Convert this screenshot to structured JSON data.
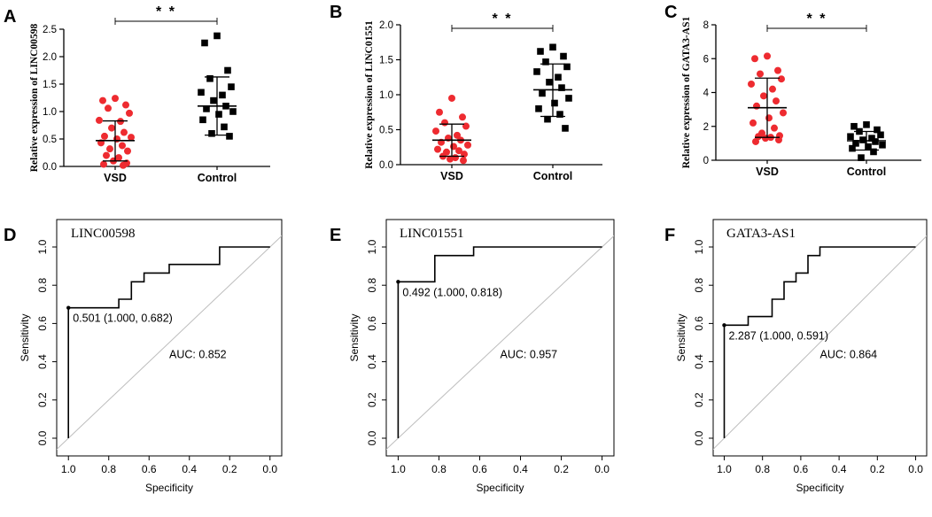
{
  "colors": {
    "vsd": "#ee2b30",
    "control": "#000000",
    "diagonal": "#bdbdbd"
  },
  "chart_data": [
    {
      "panel": "A",
      "type": "scatter",
      "ylabel": "Relative expression of LINC00598",
      "categories": [
        "VSD",
        "Control"
      ],
      "yticks": [
        "0.0",
        "0.5",
        "1.0",
        "1.5",
        "2.0",
        "2.5"
      ],
      "ylim": [
        0,
        2.5
      ],
      "significance": "* *",
      "groups": [
        {
          "name": "VSD",
          "mean": 0.47,
          "sd_low": 0.1,
          "sd_high": 0.83,
          "values": [
            1.24,
            1.2,
            1.12,
            1.06,
            0.97,
            0.84,
            0.82,
            0.7,
            0.62,
            0.55,
            0.53,
            0.5,
            0.43,
            0.38,
            0.32,
            0.28,
            0.2,
            0.16,
            0.1,
            0.06,
            0.04,
            0.02
          ]
        },
        {
          "name": "Control",
          "mean": 1.1,
          "sd_low": 0.57,
          "sd_high": 1.63,
          "values": [
            2.38,
            2.25,
            1.75,
            1.6,
            1.45,
            1.35,
            1.3,
            1.2,
            1.1,
            1.05,
            1.0,
            0.95,
            0.85,
            0.72,
            0.6,
            0.55
          ]
        }
      ]
    },
    {
      "panel": "B",
      "type": "scatter",
      "ylabel": "Relative expression of LINC01551",
      "categories": [
        "VSD",
        "Control"
      ],
      "yticks": [
        "0.0",
        "0.5",
        "1.0",
        "1.5",
        "2.0"
      ],
      "ylim": [
        0,
        2.0
      ],
      "significance": "* *",
      "groups": [
        {
          "name": "VSD",
          "mean": 0.35,
          "sd_low": 0.12,
          "sd_high": 0.58,
          "values": [
            0.95,
            0.75,
            0.68,
            0.6,
            0.55,
            0.48,
            0.42,
            0.38,
            0.35,
            0.32,
            0.28,
            0.26,
            0.22,
            0.2,
            0.18,
            0.15,
            0.12,
            0.1,
            0.08,
            0.06
          ]
        },
        {
          "name": "Control",
          "mean": 1.07,
          "sd_low": 0.69,
          "sd_high": 1.44,
          "values": [
            1.68,
            1.62,
            1.55,
            1.47,
            1.4,
            1.33,
            1.25,
            1.18,
            1.1,
            1.02,
            0.95,
            0.88,
            0.8,
            0.72,
            0.65,
            0.52
          ]
        }
      ]
    },
    {
      "panel": "C",
      "type": "scatter",
      "ylabel": "Relative expression of GATA3-AS1",
      "categories": [
        "VSD",
        "Control"
      ],
      "yticks": [
        "0",
        "2",
        "4",
        "6",
        "8"
      ],
      "ylim": [
        0,
        8
      ],
      "significance": "* *",
      "groups": [
        {
          "name": "VSD",
          "mean": 3.1,
          "sd_low": 1.35,
          "sd_high": 4.85,
          "values": [
            6.15,
            6.0,
            5.3,
            5.1,
            4.8,
            4.5,
            4.2,
            3.8,
            3.5,
            3.2,
            2.8,
            2.5,
            2.2,
            1.9,
            1.6,
            1.45,
            1.4,
            1.35,
            1.3,
            1.2,
            1.1
          ]
        },
        {
          "name": "Control",
          "mean": 1.15,
          "sd_low": 0.6,
          "sd_high": 1.7,
          "values": [
            2.1,
            2.0,
            1.8,
            1.7,
            1.5,
            1.4,
            1.3,
            1.2,
            1.1,
            1.0,
            0.9,
            0.8,
            0.7,
            0.5,
            0.15
          ]
        }
      ]
    },
    {
      "panel": "D",
      "type": "line",
      "title": "LINC00598",
      "xlabel": "Specificity",
      "ylabel": "Sensitivity",
      "xticks": [
        "1.0",
        "0.8",
        "0.6",
        "0.4",
        "0.2",
        "0.0"
      ],
      "yticks": [
        "0.0",
        "0.2",
        "0.4",
        "0.6",
        "0.8",
        "1.0"
      ],
      "xlim": [
        1.0,
        0.0
      ],
      "ylim": [
        0,
        1
      ],
      "threshold_label": "0.501 (1.000, 0.682)",
      "threshold_point": [
        1.0,
        0.682
      ],
      "auc_label": "AUC: 0.852",
      "roc": [
        [
          1.0,
          0.0
        ],
        [
          1.0,
          0.682
        ],
        [
          0.875,
          0.682
        ],
        [
          0.75,
          0.682
        ],
        [
          0.75,
          0.727
        ],
        [
          0.6875,
          0.727
        ],
        [
          0.6875,
          0.818
        ],
        [
          0.625,
          0.818
        ],
        [
          0.625,
          0.864
        ],
        [
          0.5,
          0.864
        ],
        [
          0.5,
          0.909
        ],
        [
          0.25,
          0.909
        ],
        [
          0.25,
          1.0
        ],
        [
          0.0,
          1.0
        ]
      ]
    },
    {
      "panel": "E",
      "type": "line",
      "title": "LINC01551",
      "xlabel": "Specificity",
      "ylabel": "Sensitivity",
      "xticks": [
        "1.0",
        "0.8",
        "0.6",
        "0.4",
        "0.2",
        "0.0"
      ],
      "yticks": [
        "0.0",
        "0.2",
        "0.4",
        "0.6",
        "0.8",
        "1.0"
      ],
      "xlim": [
        1.0,
        0.0
      ],
      "ylim": [
        0,
        1
      ],
      "threshold_label": "0.492 (1.000, 0.818)",
      "threshold_point": [
        1.0,
        0.818
      ],
      "auc_label": "AUC: 0.957",
      "roc": [
        [
          1.0,
          0.0
        ],
        [
          1.0,
          0.818
        ],
        [
          0.82,
          0.818
        ],
        [
          0.82,
          0.955
        ],
        [
          0.63,
          0.955
        ],
        [
          0.63,
          1.0
        ],
        [
          0.0,
          1.0
        ]
      ]
    },
    {
      "panel": "F",
      "type": "line",
      "title": "GATA3-AS1",
      "xlabel": "Specificity",
      "ylabel": "Sensitivity",
      "xticks": [
        "1.0",
        "0.8",
        "0.6",
        "0.4",
        "0.2",
        "0.0"
      ],
      "yticks": [
        "0.0",
        "0.2",
        "0.4",
        "0.6",
        "0.8",
        "1.0"
      ],
      "xlim": [
        1.0,
        0.0
      ],
      "ylim": [
        0,
        1
      ],
      "threshold_label": "2.287 (1.000, 0.591)",
      "threshold_point": [
        1.0,
        0.591
      ],
      "auc_label": "AUC: 0.864",
      "roc": [
        [
          1.0,
          0.0
        ],
        [
          1.0,
          0.591
        ],
        [
          0.875,
          0.591
        ],
        [
          0.875,
          0.636
        ],
        [
          0.75,
          0.636
        ],
        [
          0.75,
          0.727
        ],
        [
          0.6875,
          0.727
        ],
        [
          0.6875,
          0.818
        ],
        [
          0.625,
          0.818
        ],
        [
          0.625,
          0.864
        ],
        [
          0.5625,
          0.864
        ],
        [
          0.5625,
          0.955
        ],
        [
          0.5,
          0.955
        ],
        [
          0.5,
          1.0
        ],
        [
          0.0,
          1.0
        ]
      ]
    }
  ]
}
